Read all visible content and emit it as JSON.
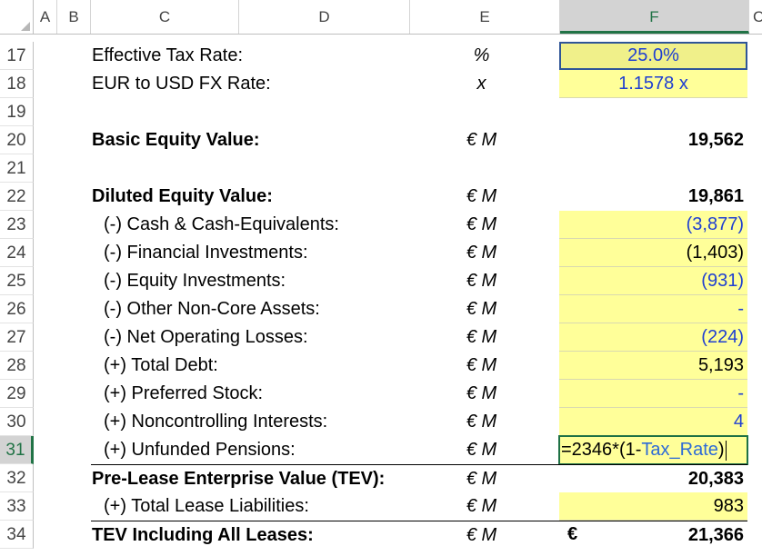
{
  "columns": [
    "A",
    "B",
    "C",
    "D",
    "E",
    "F",
    "C"
  ],
  "rows": [
    {
      "num": "17",
      "label": "Effective Tax Rate:",
      "unit": "%",
      "value": "25.0%",
      "style": "input-pct"
    },
    {
      "num": "18",
      "label": "EUR to USD FX Rate:",
      "unit": "x",
      "value": "1.1578 x",
      "style": "input-fx"
    },
    {
      "num": "19",
      "label": "",
      "unit": "",
      "value": "",
      "style": "blank"
    },
    {
      "num": "20",
      "label": "Basic Equity Value:",
      "unit": "€ M",
      "value": "19,562",
      "style": "bold"
    },
    {
      "num": "21",
      "label": "",
      "unit": "",
      "value": "",
      "style": "blank"
    },
    {
      "num": "22",
      "label": "Diluted Equity Value:",
      "unit": "€ M",
      "value": "19,861",
      "style": "bold"
    },
    {
      "num": "23",
      "label": "(-) Cash & Cash-Equivalents:",
      "unit": "€ M",
      "value": "(3,877)",
      "style": "input-blue"
    },
    {
      "num": "24",
      "label": "(-) Financial Investments:",
      "unit": "€ M",
      "value": "(1,403)",
      "style": "input-black"
    },
    {
      "num": "25",
      "label": "(-) Equity Investments:",
      "unit": "€ M",
      "value": "(931)",
      "style": "input-blue"
    },
    {
      "num": "26",
      "label": "(-) Other Non-Core Assets:",
      "unit": "€ M",
      "value": "-",
      "style": "input-blue"
    },
    {
      "num": "27",
      "label": "(-) Net Operating Losses:",
      "unit": "€ M",
      "value": "(224)",
      "style": "input-blue"
    },
    {
      "num": "28",
      "label": "(+) Total Debt:",
      "unit": "€ M",
      "value": "5,193",
      "style": "input-black"
    },
    {
      "num": "29",
      "label": "(+) Preferred Stock:",
      "unit": "€ M",
      "value": "-",
      "style": "input-blue"
    },
    {
      "num": "30",
      "label": "(+) Noncontrolling Interests:",
      "unit": "€ M",
      "value": "4",
      "style": "input-blue"
    },
    {
      "num": "31",
      "label": "(+) Unfunded Pensions:",
      "unit": "€ M",
      "value": "",
      "style": "editing"
    },
    {
      "num": "32",
      "label": "Pre-Lease Enterprise Value (TEV):",
      "unit": "€ M",
      "value": "20,383",
      "style": "bold-top"
    },
    {
      "num": "33",
      "label": "(+) Total Lease Liabilities:",
      "unit": "€ M",
      "value": "983",
      "style": "input-black"
    },
    {
      "num": "34",
      "label": "TEV Including All Leases:",
      "unit": "€ M",
      "value": "21,366",
      "currency": "€",
      "style": "bold-top"
    }
  ],
  "formula": {
    "prefix": "=2346*(1-",
    "ref": "Tax_Rate",
    "suffix": ")"
  }
}
